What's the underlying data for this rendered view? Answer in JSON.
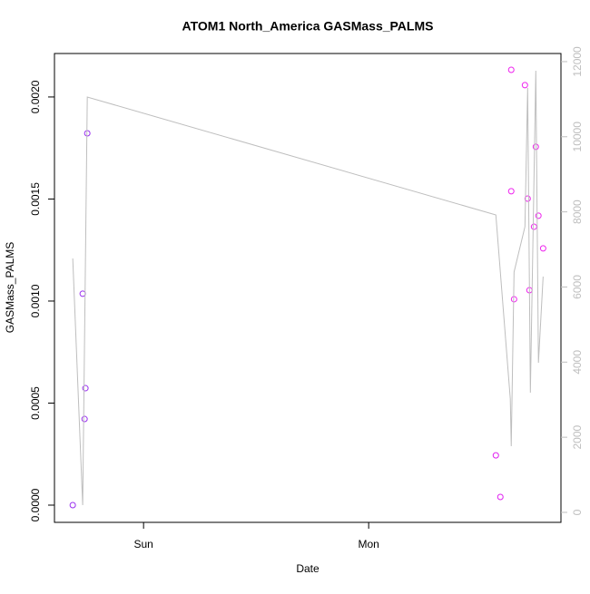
{
  "chart_data": {
    "type": "scatter",
    "title": "ATOM1 North_America GASMass_PALMS",
    "x_label": "Date",
    "y_label": "GASMass_PALMS",
    "xlim": [
      14.5,
      68.5
    ],
    "xticks": [
      {
        "value": 24,
        "label": "Sun"
      },
      {
        "value": 48,
        "label": "Mon"
      }
    ],
    "ylim": [
      -8.44e-05,
      0.002213
    ],
    "yticks": [
      {
        "value": 0,
        "label": "0.0000"
      },
      {
        "value": 0.0005,
        "label": "0.0005"
      },
      {
        "value": 0.001,
        "label": "0.0010"
      },
      {
        "value": 0.0015,
        "label": "0.0015"
      },
      {
        "value": 0.002,
        "label": "0.0020"
      }
    ],
    "y2lim": [
      -266,
      12216
    ],
    "y2ticks": [
      0,
      2000,
      4000,
      6000,
      8000,
      10000,
      12000
    ],
    "series": [
      {
        "x": [
          16.45,
          17.51,
          17.71,
          17.8,
          18.0,
          61.56,
          62.04,
          63.2,
          63.2,
          63.5,
          64.66,
          64.95,
          65.14,
          65.63,
          65.82,
          66.1,
          66.6
        ],
        "values": [
          0,
          0.001036,
          0.000422,
          0.000573,
          0.001822,
          0.000244,
          4e-05,
          0.002133,
          0.001538,
          0.001009,
          0.002058,
          0.001502,
          0.001053,
          0.001364,
          0.001756,
          0.001418,
          0.001258
        ],
        "colors": [
          "#9a30f0",
          "#9a30f0",
          "#9a30f0",
          "#9a30f0",
          "#9a30f0",
          "#e020f0",
          "#e020f0",
          "#ee22ee",
          "#ee22ee",
          "#ee22ee",
          "#ee22ee",
          "#ee22ee",
          "#ee22ee",
          "#ee22ee",
          "#ee22ee",
          "#ee22ee",
          "#ee22ee"
        ]
      },
      {
        "axis": "y2",
        "color": "#bebebe",
        "x": [
          16.45,
          17.51,
          18.0,
          61.56,
          63.1,
          63.2,
          63.5,
          64.66,
          64.95,
          65.24,
          65.82,
          66.1,
          66.6
        ],
        "values": [
          6760,
          193,
          11057,
          7919,
          3018,
          1762,
          6398,
          7605,
          11299,
          3187,
          11758,
          3984,
          6277
        ]
      }
    ]
  }
}
